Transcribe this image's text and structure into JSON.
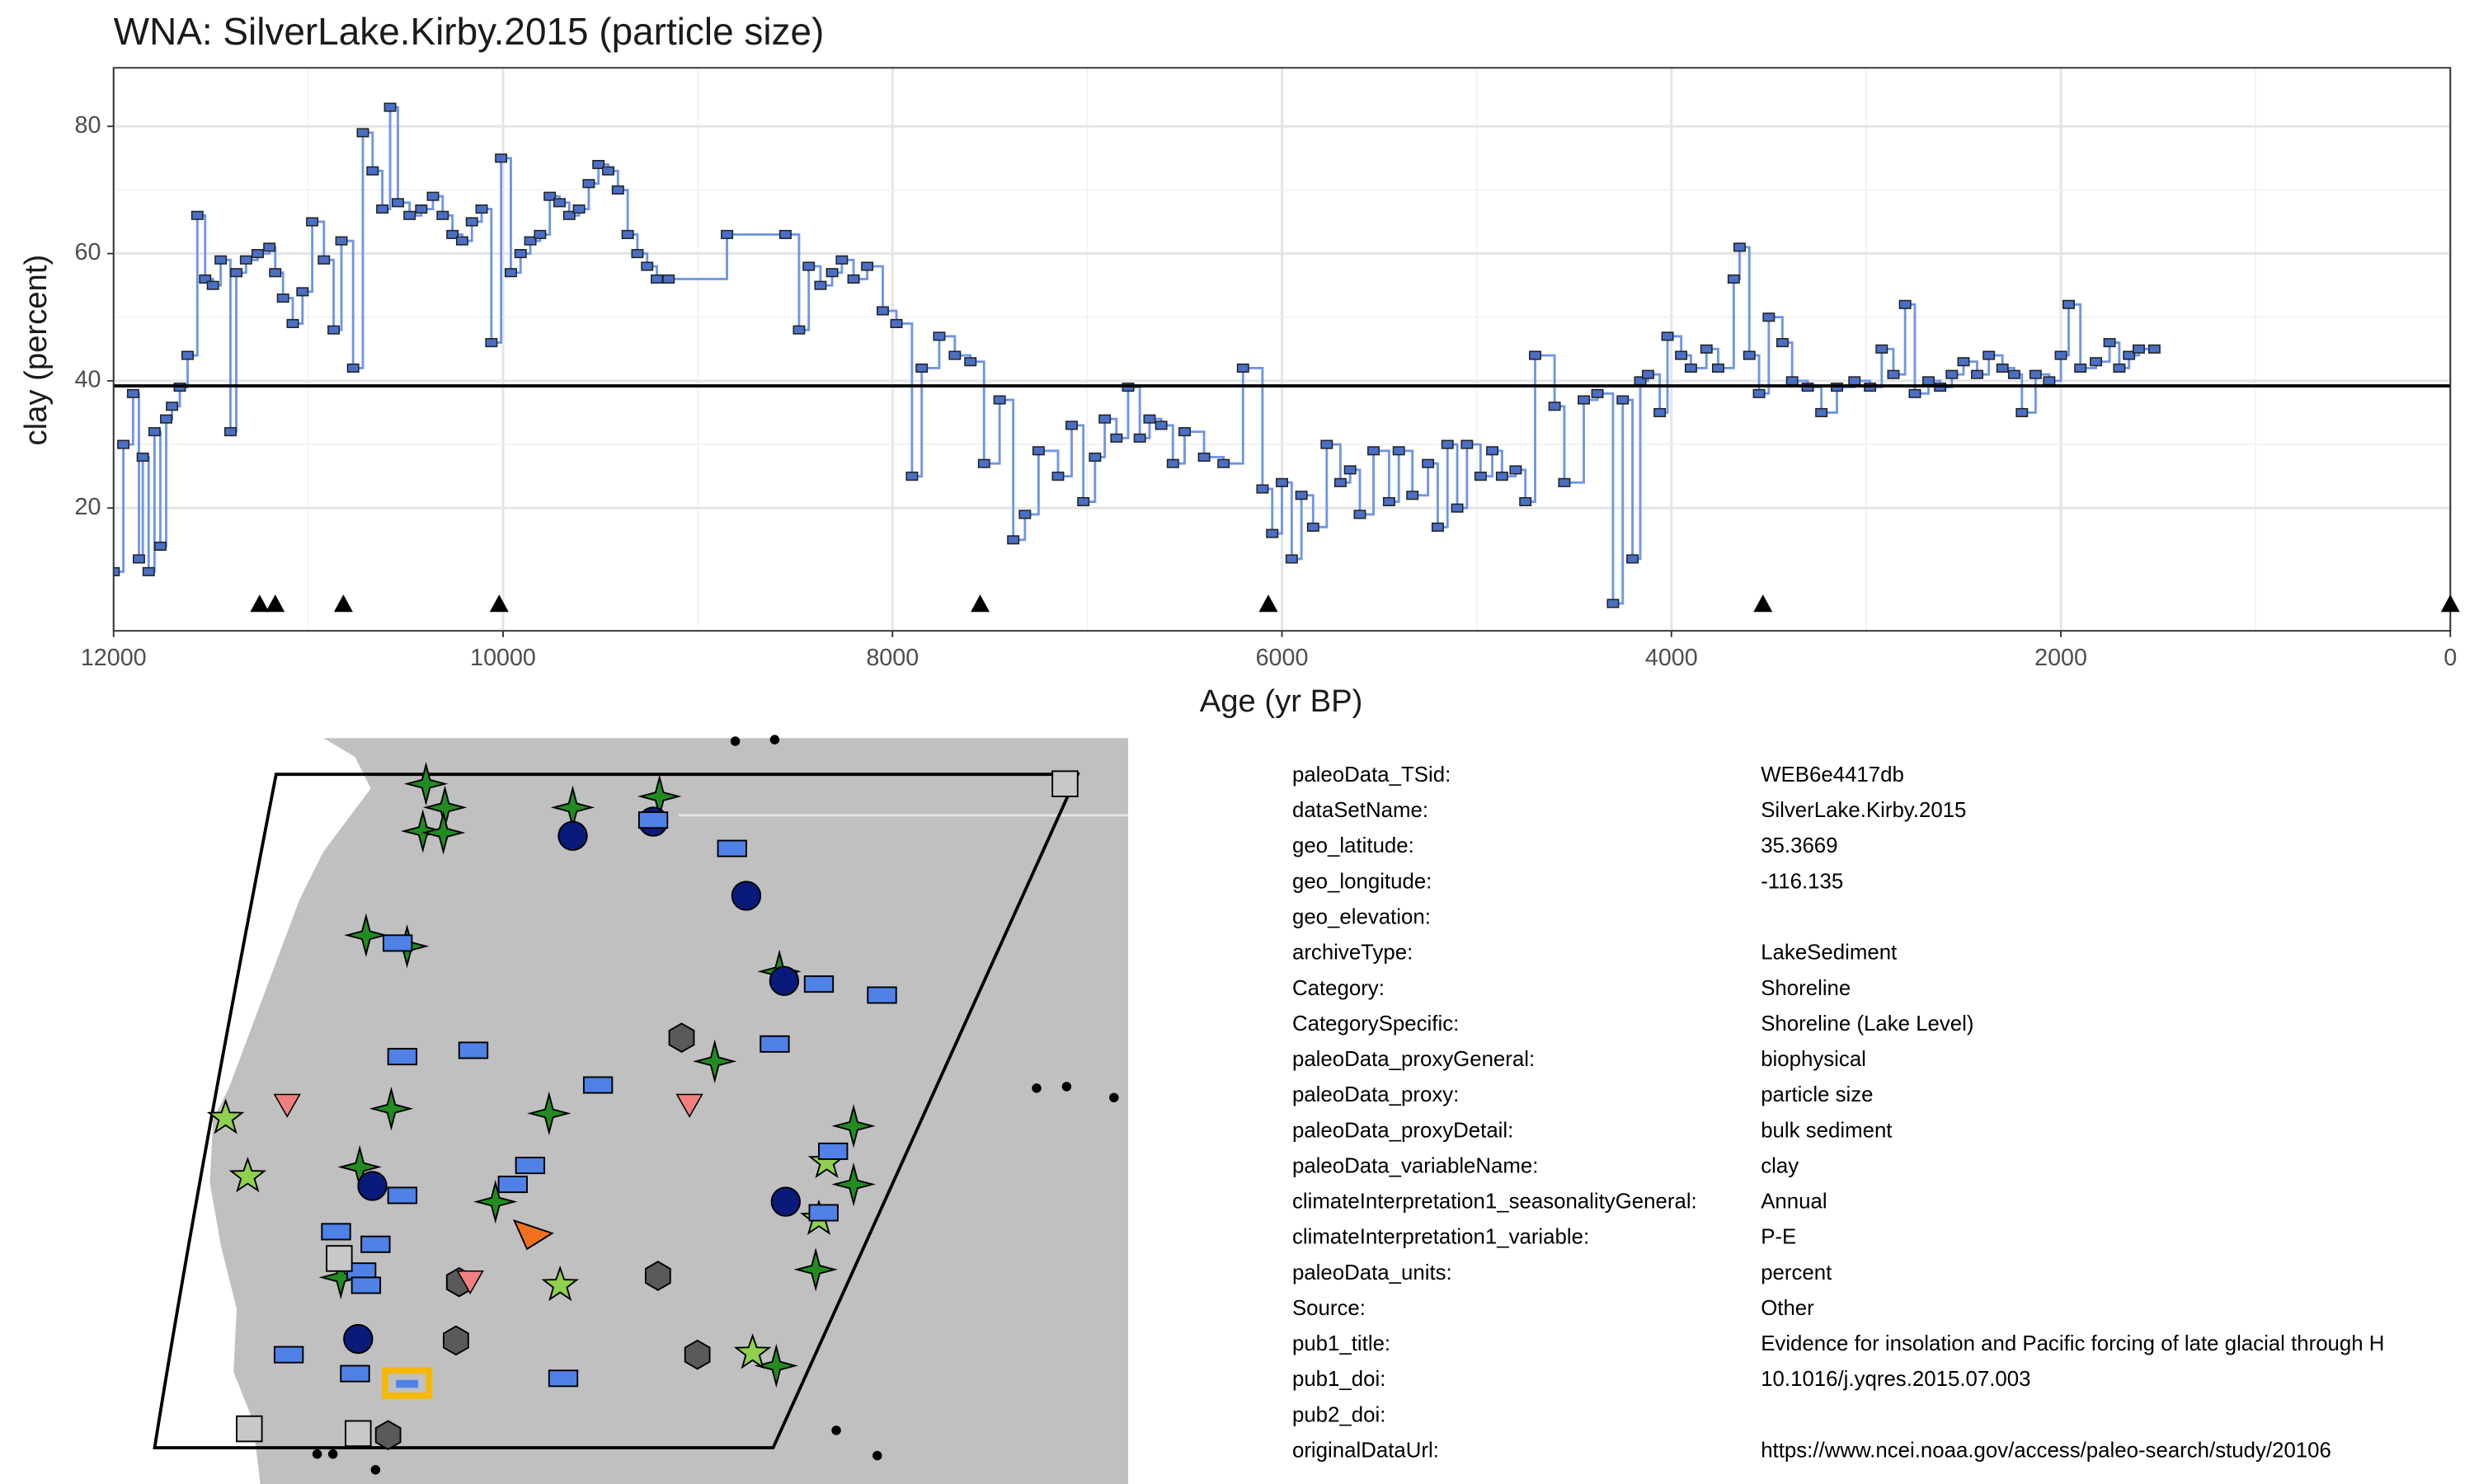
{
  "chart_data": {
    "type": "step",
    "title": "WNA: SilverLake.Kirby.2015 (particle size)",
    "x_label": "Age (yr BP)",
    "y_label": "clay (percent)",
    "xlim": [
      12000,
      0
    ],
    "ylim": [
      0.7,
      89.2
    ],
    "xticks": [
      12000,
      10000,
      8000,
      6000,
      4000,
      2000,
      0
    ],
    "yticks": [
      20,
      40,
      60,
      80
    ],
    "grid": true,
    "line_color": "#6f96e6",
    "marker_color": "#4a6fc4",
    "reference_line": 39.2,
    "age_markers": [
      11250,
      11170,
      10820,
      10020,
      7550,
      6070,
      3530,
      0
    ],
    "x": [
      12000,
      11950,
      11900,
      11870,
      11850,
      11820,
      11790,
      11760,
      11730,
      11700,
      11660,
      11620,
      11570,
      11530,
      11490,
      11450,
      11400,
      11370,
      11320,
      11260,
      11200,
      11170,
      11130,
      11080,
      11030,
      10980,
      10920,
      10870,
      10830,
      10770,
      10720,
      10670,
      10620,
      10580,
      10540,
      10480,
      10420,
      10360,
      10310,
      10260,
      10210,
      10160,
      10110,
      10060,
      10010,
      9960,
      9910,
      9860,
      9810,
      9760,
      9710,
      9660,
      9610,
      9560,
      9510,
      9460,
      9410,
      9360,
      9310,
      9260,
      9210,
      9150,
      8850,
      8550,
      8480,
      8430,
      8370,
      8310,
      8260,
      8200,
      8130,
      8050,
      7980,
      7900,
      7850,
      7760,
      7680,
      7600,
      7530,
      7450,
      7380,
      7320,
      7250,
      7150,
      7080,
      7020,
      6960,
      6910,
      6850,
      6790,
      6730,
      6680,
      6620,
      6560,
      6500,
      6400,
      6300,
      6200,
      6100,
      6050,
      6000,
      5950,
      5900,
      5840,
      5770,
      5700,
      5650,
      5600,
      5530,
      5450,
      5400,
      5330,
      5250,
      5200,
      5150,
      5100,
      5050,
      4980,
      4920,
      4870,
      4800,
      4750,
      4700,
      4600,
      4550,
      4450,
      4380,
      4300,
      4250,
      4200,
      4160,
      4120,
      4060,
      4020,
      3950,
      3900,
      3820,
      3760,
      3680,
      3650,
      3600,
      3550,
      3500,
      3430,
      3380,
      3300,
      3230,
      3150,
      3060,
      2980,
      2920,
      2860,
      2800,
      2750,
      2680,
      2620,
      2560,
      2500,
      2430,
      2370,
      2300,
      2240,
      2200,
      2130,
      2060,
      2000,
      1960,
      1900,
      1820,
      1750,
      1700,
      1650,
      1600,
      1520
    ],
    "values": [
      10,
      30,
      38,
      12,
      28,
      10,
      32,
      14,
      34,
      36,
      39,
      44,
      66,
      56,
      55,
      59,
      32,
      57,
      59,
      60,
      61,
      57,
      53,
      49,
      54,
      65,
      59,
      48,
      62,
      42,
      79,
      73,
      67,
      83,
      68,
      66,
      67,
      69,
      66,
      63,
      62,
      65,
      67,
      46,
      75,
      57,
      60,
      62,
      63,
      69,
      68,
      66,
      67,
      71,
      74,
      73,
      70,
      63,
      60,
      58,
      56,
      56,
      63,
      63,
      48,
      58,
      55,
      57,
      59,
      56,
      58,
      51,
      49,
      25,
      42,
      47,
      44,
      43,
      27,
      37,
      15,
      19,
      29,
      25,
      33,
      21,
      28,
      34,
      31,
      39,
      31,
      34,
      33,
      27,
      32,
      28,
      27,
      42,
      23,
      16,
      24,
      12,
      22,
      17,
      30,
      24,
      26,
      19,
      29,
      21,
      29,
      22,
      27,
      17,
      30,
      20,
      30,
      25,
      29,
      25,
      26,
      21,
      44,
      36,
      24,
      37,
      38,
      5,
      37,
      12,
      40,
      41,
      35,
      47,
      44,
      42,
      45,
      42,
      56,
      61,
      44,
      38,
      50,
      46,
      40,
      39,
      35,
      39,
      40,
      39,
      45,
      41,
      52,
      38,
      40,
      39,
      41,
      43,
      41,
      44,
      42,
      41,
      35,
      41,
      40,
      44,
      52,
      42,
      43,
      46,
      42,
      44,
      45,
      45
    ]
  },
  "metadata": [
    {
      "key": "paleoData_TSid:",
      "value": "WEB6e4417db"
    },
    {
      "key": "dataSetName:",
      "value": "SilverLake.Kirby.2015"
    },
    {
      "key": "geo_latitude:",
      "value": "35.3669"
    },
    {
      "key": "geo_longitude:",
      "value": "-116.135"
    },
    {
      "key": "geo_elevation:"
    },
    {
      "key": "archiveType:",
      "value": "LakeSediment"
    },
    {
      "key": "Category:",
      "value": "Shoreline"
    },
    {
      "key": "CategorySpecific:",
      "value": "Shoreline (Lake Level)"
    },
    {
      "key": "paleoData_proxyGeneral:",
      "value": "biophysical"
    },
    {
      "key": "paleoData_proxy:",
      "value": "particle size"
    },
    {
      "key": "paleoData_proxyDetail:",
      "value": "bulk sediment"
    },
    {
      "key": "paleoData_variableName:",
      "value": "clay"
    },
    {
      "key": "climateInterpretation1_seasonalityGeneral:",
      "value": "Annual"
    },
    {
      "key": "climateInterpretation1_variable:",
      "value": "P-E"
    },
    {
      "key": "paleoData_units:",
      "value": "percent"
    },
    {
      "key": "Source:",
      "value": "Other"
    },
    {
      "key": "pub1_title:",
      "value": "Evidence for insolation and Pacific forcing of late glacial through H"
    },
    {
      "key": "pub1_doi:",
      "value": "10.1016/j.yqres.2015.07.003"
    },
    {
      "key": "pub2_doi:"
    },
    {
      "key": "originalDataUrl:",
      "value": "https://www.ncei.noaa.gov/access/paleo-search/study/20106"
    }
  ]
}
